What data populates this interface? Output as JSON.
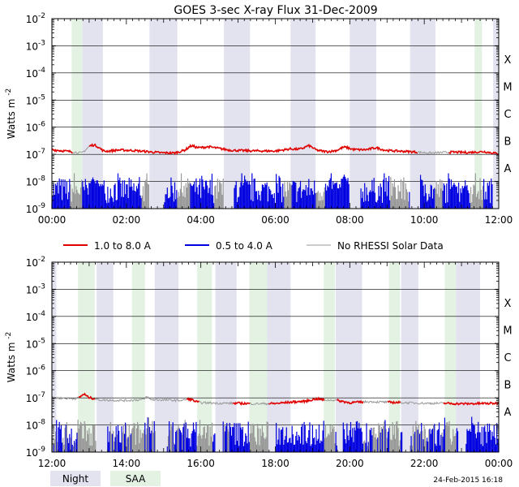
{
  "chart_data": {
    "type": "line",
    "title": "GOES 3-sec X-ray Flux   31-Dec-2009",
    "ylabel": "Watts m",
    "ylabel_sup": "-2",
    "yscale": "log",
    "ylim_exponents": [
      -9,
      -2
    ],
    "ytick_exponents": [
      -9,
      -8,
      -7,
      -6,
      -5,
      -4,
      -3,
      -2
    ],
    "flare_classes": [
      "A",
      "B",
      "C",
      "M",
      "X"
    ],
    "legend": {
      "long": "1.0 to 8.0 A",
      "short": "0.5 to 4.0 A",
      "norhessi": "No RHESSI Solar Data"
    },
    "colors": {
      "long": "#e00000",
      "short": "#0000e0",
      "norhessi": "#999999",
      "night": "#e3e3f0",
      "saa": "#e4f2e4",
      "grid": "#000000"
    },
    "footer": {
      "night_label": "Night",
      "saa_label": "SAA",
      "timestamp": "24-Feb-2015 16:18"
    },
    "panels": [
      {
        "xtick_labels": [
          "00:00",
          "02:00",
          "04:00",
          "06:00",
          "08:00",
          "10:00",
          "12:00"
        ],
        "night_hours": [
          [
            0.82,
            1.37
          ],
          [
            2.62,
            3.37
          ],
          [
            4.62,
            5.32
          ],
          [
            6.41,
            7.08
          ],
          [
            8.0,
            8.71
          ],
          [
            9.62,
            10.3
          ],
          [
            11.85,
            12.0
          ]
        ],
        "saa_hours": [
          [
            0.53,
            0.82
          ],
          [
            11.35,
            11.55
          ]
        ],
        "long_level_exp": [
          [
            0,
            -6.83
          ],
          [
            0.5,
            -6.9
          ],
          [
            0.8,
            -6.95
          ],
          [
            1.0,
            -6.78
          ],
          [
            1.4,
            -6.9
          ],
          [
            1.8,
            -6.84
          ],
          [
            2.2,
            -6.86
          ],
          [
            2.9,
            -6.94
          ],
          [
            3.3,
            -6.95
          ],
          [
            3.7,
            -6.8
          ],
          [
            4.2,
            -6.72
          ],
          [
            4.8,
            -6.85
          ],
          [
            5.3,
            -6.87
          ],
          [
            6.0,
            -6.88
          ],
          [
            6.4,
            -6.8
          ],
          [
            6.9,
            -6.83
          ],
          [
            7.4,
            -6.9
          ],
          [
            8.0,
            -6.82
          ],
          [
            8.6,
            -6.84
          ],
          [
            9.0,
            -6.86
          ],
          [
            9.6,
            -6.9
          ],
          [
            10.2,
            -6.95
          ],
          [
            10.7,
            -6.92
          ],
          [
            11.2,
            -6.93
          ],
          [
            11.6,
            -6.9
          ],
          [
            12.0,
            -6.98
          ]
        ],
        "long_bumps": [
          [
            1.15,
            0.18,
            0.16
          ],
          [
            3.75,
            0.12,
            0.1
          ],
          [
            6.9,
            0.15,
            0.14
          ],
          [
            7.85,
            0.15,
            0.1
          ],
          [
            8.7,
            0.18,
            0.08
          ]
        ],
        "long_gray_hours": [
          [
            0.55,
            1.0
          ],
          [
            9.8,
            10.65
          ]
        ],
        "short_gray_hours": [
          [
            0.5,
            0.82
          ],
          [
            2.42,
            2.62
          ],
          [
            3.37,
            3.72
          ],
          [
            4.37,
            4.62
          ],
          [
            6.25,
            6.45
          ],
          [
            7.08,
            7.35
          ],
          [
            9.1,
            9.6
          ],
          [
            10.3,
            10.5
          ],
          [
            11.25,
            11.6
          ]
        ],
        "short_gaps": [
          [
            2.62,
            3.0
          ],
          [
            4.62,
            4.9
          ],
          [
            8.0,
            8.3
          ],
          [
            9.62,
            9.9
          ],
          [
            11.85,
            12.0
          ]
        ],
        "short_base_exp": -8.85,
        "short_spikes": [
          [
            1.1,
            -7.85
          ],
          [
            1.3,
            -8.1
          ],
          [
            3.7,
            -8.0
          ],
          [
            7.6,
            -8.05
          ],
          [
            7.85,
            -7.75
          ],
          [
            8.2,
            -7.9
          ],
          [
            10.8,
            -8.05
          ],
          [
            11.1,
            -8.1
          ]
        ]
      },
      {
        "xtick_labels": [
          "12:00",
          "14:00",
          "16:00",
          "18:00",
          "20:00",
          "22:00",
          "00:00"
        ],
        "night_hours": [
          [
            12.0,
            12.12
          ],
          [
            13.2,
            13.65
          ],
          [
            14.76,
            15.4
          ],
          [
            16.39,
            16.96
          ],
          [
            17.78,
            18.41
          ],
          [
            19.62,
            20.33
          ],
          [
            21.38,
            21.84
          ],
          [
            22.85,
            23.5
          ]
        ],
        "saa_hours": [
          [
            12.7,
            13.15
          ],
          [
            14.15,
            14.5
          ],
          [
            15.9,
            16.3
          ],
          [
            17.3,
            17.8
          ],
          [
            19.3,
            19.6
          ],
          [
            21.05,
            21.35
          ],
          [
            22.55,
            22.85
          ]
        ],
        "long_level_exp": [
          [
            12.0,
            -7.0
          ],
          [
            12.6,
            -7.03
          ],
          [
            12.9,
            -6.96
          ],
          [
            13.3,
            -7.08
          ],
          [
            14.0,
            -7.1
          ],
          [
            14.5,
            -7.06
          ],
          [
            15.0,
            -7.08
          ],
          [
            15.5,
            -7.1
          ],
          [
            16.0,
            -7.18
          ],
          [
            16.5,
            -7.2
          ],
          [
            17.0,
            -7.2
          ],
          [
            17.5,
            -7.22
          ],
          [
            18.0,
            -7.21
          ],
          [
            18.5,
            -7.15
          ],
          [
            19.0,
            -7.12
          ],
          [
            19.6,
            -7.08
          ],
          [
            20.0,
            -7.18
          ],
          [
            20.5,
            -7.14
          ],
          [
            21.0,
            -7.16
          ],
          [
            21.5,
            -7.18
          ],
          [
            22.0,
            -7.2
          ],
          [
            22.5,
            -7.2
          ],
          [
            23.0,
            -7.22
          ],
          [
            23.5,
            -7.21
          ],
          [
            24.0,
            -7.2
          ]
        ],
        "long_bumps": [
          [
            12.85,
            0.08,
            0.1
          ],
          [
            14.55,
            0.06,
            0.1
          ],
          [
            15.7,
            0.15,
            0.08
          ],
          [
            19.1,
            0.2,
            0.07
          ]
        ],
        "long_gray_hours": [
          [
            12.0,
            12.7
          ],
          [
            13.15,
            15.6
          ],
          [
            15.95,
            16.85
          ],
          [
            17.3,
            17.8
          ],
          [
            19.3,
            19.65
          ],
          [
            20.35,
            21.0
          ],
          [
            21.35,
            22.5
          ]
        ],
        "short_gray_hours": [
          [
            12.7,
            13.15
          ],
          [
            14.15,
            14.5
          ],
          [
            15.9,
            16.3
          ],
          [
            17.3,
            17.8
          ],
          [
            19.3,
            19.6
          ],
          [
            21.05,
            21.35
          ],
          [
            22.55,
            22.85
          ]
        ],
        "short_gaps": [
          [
            13.2,
            13.5
          ],
          [
            14.8,
            15.1
          ],
          [
            16.4,
            16.6
          ],
          [
            17.8,
            18.0
          ],
          [
            19.65,
            19.8
          ],
          [
            21.4,
            21.6
          ],
          [
            22.9,
            23.1
          ]
        ],
        "short_base_exp": -8.85,
        "short_spikes": [
          [
            15.4,
            -8.05
          ],
          [
            20.2,
            -8.05
          ],
          [
            21.8,
            -8.1
          ],
          [
            23.3,
            -8.1
          ]
        ]
      }
    ]
  }
}
